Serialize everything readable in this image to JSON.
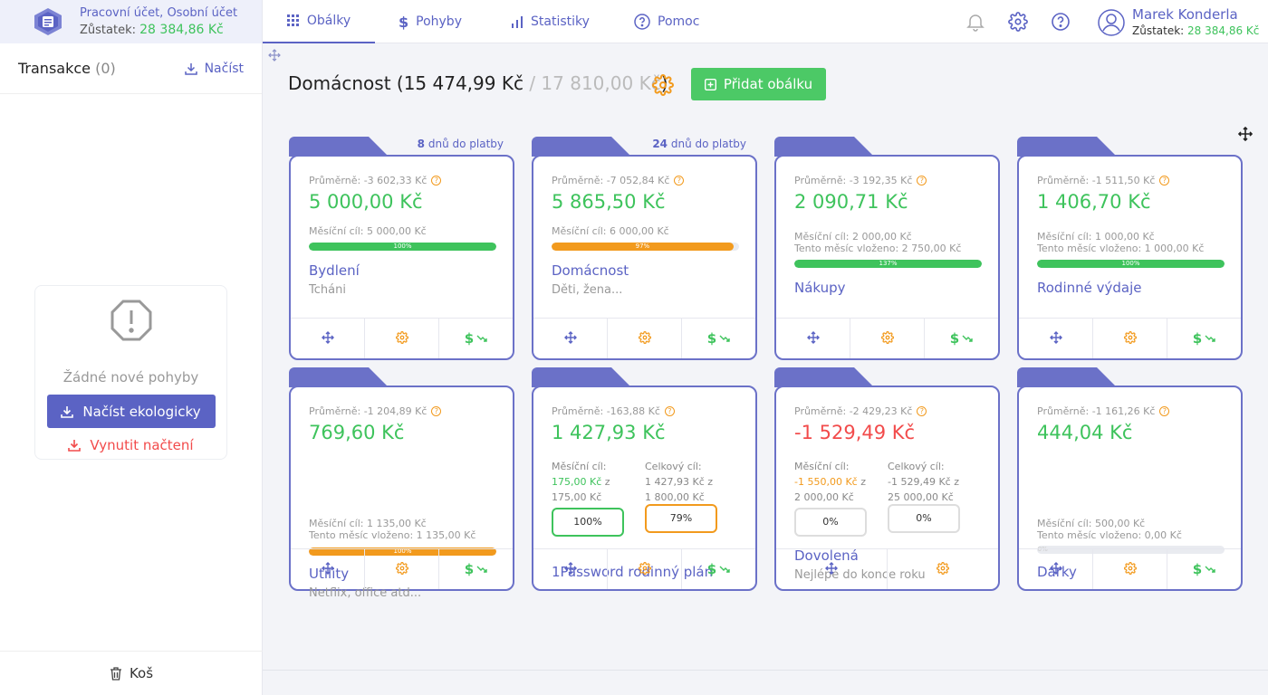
{
  "account": {
    "name": "Pracovní účet, Osobní účet",
    "balance_label": "Zůstatek:",
    "balance": "28 384,86 Kč"
  },
  "transactions": {
    "title": "Transakce",
    "count": "(0)",
    "load_label": "Načíst"
  },
  "empty": {
    "text": "Žádné nové pohyby",
    "eco_button": "Načíst ekologicky",
    "force_button": "Vynutit načtení"
  },
  "trash_label": "Koš",
  "nav": {
    "tabs": [
      "Obálky",
      "Pohyby",
      "Statistiky",
      "Pomoc"
    ]
  },
  "user": {
    "name": "Marek Konderla",
    "balance_label": "Zůstatek:",
    "balance": "28 384,86 Kč"
  },
  "header": {
    "title": "Domácnost (15 474,99 Kč",
    "slash": " / ",
    "limit": "17 810,00 Kč",
    "close": ")",
    "add_button": "Přidat obálku"
  },
  "colors": {
    "accent": "#5b63c4",
    "green": "#3ec35c",
    "orange": "#f29a1d",
    "red": "#f24b4b"
  },
  "cards": [
    {
      "days": "8",
      "days_label": "dnů do platby",
      "avg": "Průměrně: -3 602,33 Kč",
      "amount": "5 000,00 Kč",
      "goal": "Měsíční cíl: 5 000,00 Kč",
      "progress": "100%",
      "name": "Bydlení",
      "desc": "Tcháni"
    },
    {
      "days": "24",
      "days_label": "dnů do platby",
      "avg": "Průměrně: -7 052,84 Kč",
      "amount": "5 865,50 Kč",
      "goal": "Měsíční cíl: 6 000,00 Kč",
      "progress": "97%",
      "name": "Domácnost",
      "desc": "Děti, žena..."
    },
    {
      "avg": "Průměrně: -3 192,35 Kč",
      "amount": "2 090,71 Kč",
      "goal": "Měsíční cíl: 2 000,00 Kč",
      "goal2": "Tento měsíc vloženo: 2 750,00 Kč",
      "progress": "137%",
      "name": "Nákupy"
    },
    {
      "avg": "Průměrně: -1 511,50 Kč",
      "amount": "1 406,70 Kč",
      "goal": "Měsíční cíl: 1 000,00 Kč",
      "goal2": "Tento měsíc vloženo: 1 000,00 Kč",
      "progress": "100%",
      "name": "Rodinné výdaje"
    },
    {
      "avg": "Průměrně: -1 204,89 Kč",
      "amount": "769,60 Kč",
      "goal": "Měsíční cíl: 1 135,00 Kč",
      "goal2": "Tento měsíc vloženo: 1 135,00 Kč",
      "progress": "100%",
      "name": "Utility",
      "desc": "Netflix, office atd..."
    },
    {
      "avg": "Průměrně: -163,88 Kč",
      "amount": "1 427,93 Kč",
      "m_label": "Měsíční cíl:",
      "m_val": "175,00 Kč",
      "m_z": " z",
      "m_total": "175,00 Kč",
      "c_label": "Celkový cíl:",
      "c_val": "1 427,93 Kč",
      "c_z": " z",
      "c_total": "1 800,00 Kč",
      "m_pct": "100%",
      "c_pct": "79%",
      "name": "1Password rodinný plán"
    },
    {
      "avg": "Průměrně: -2 429,23 Kč",
      "amount": "-1 529,49 Kč",
      "m_label": "Měsíční cíl:",
      "m_val": "-1 550,00 Kč",
      "m_z": " z",
      "m_total": "2 000,00 Kč",
      "c_label": "Celkový cíl:",
      "c_val": "-1 529,49 Kč",
      "c_z": " z",
      "c_total": "25 000,00 Kč",
      "m_pct": "0%",
      "c_pct": "0%",
      "name": "Dovolená",
      "desc": "Nejlépe do konce roku"
    },
    {
      "avg": "Průměrně: -1 161,26 Kč",
      "amount": "444,04 Kč",
      "goal": "Měsíční cíl: 500,00 Kč",
      "goal2": "Tento měsíc vloženo: 0,00 Kč",
      "progress": "0%",
      "name": "Dárky"
    }
  ]
}
